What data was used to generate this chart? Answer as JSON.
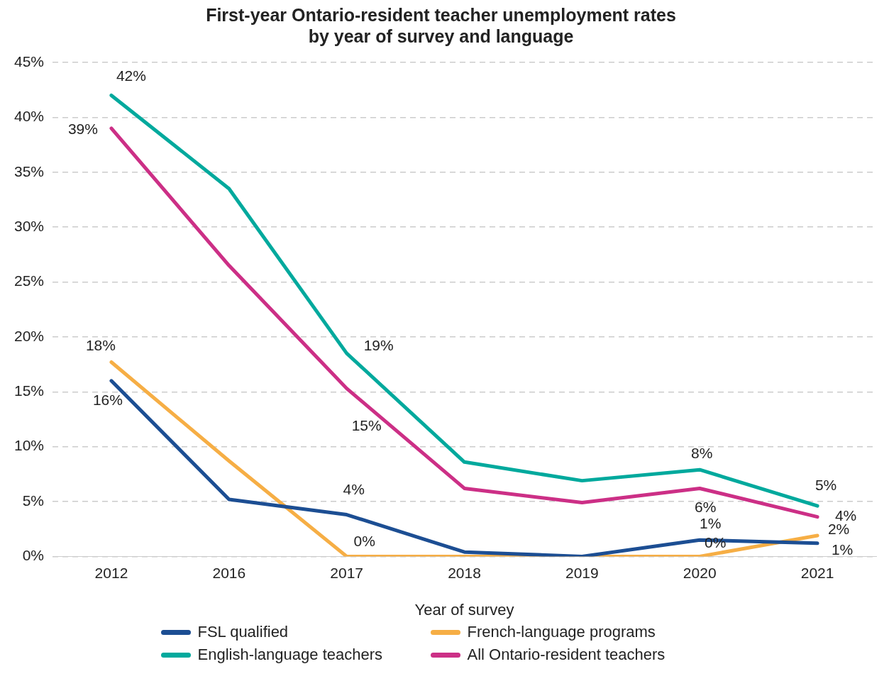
{
  "chart_data": {
    "type": "line",
    "title": "First-year Ontario-resident teacher unemployment rates\nby year of survey and language",
    "xlabel": "Year of survey",
    "categories": [
      "2012",
      "2016",
      "2017",
      "2018",
      "2019",
      "2020",
      "2021"
    ],
    "series": [
      {
        "name": "FSL qualified",
        "color": "#1c4e93",
        "values": [
          16,
          5.2,
          3.8,
          0.4,
          0,
          1.5,
          1.2
        ],
        "value_labels": [
          "16%",
          null,
          "4%",
          null,
          null,
          "1%",
          "1%"
        ]
      },
      {
        "name": "French-language programs",
        "color": "#f6ae45",
        "values": [
          17.7,
          8.7,
          0,
          0,
          0,
          0,
          1.9
        ],
        "value_labels": [
          "18%",
          null,
          "0%",
          null,
          null,
          "0%",
          "2%"
        ]
      },
      {
        "name": "English-language teachers",
        "color": "#00a99d",
        "values": [
          42,
          33.5,
          18.5,
          8.6,
          6.9,
          7.9,
          4.6
        ],
        "value_labels": [
          "42%",
          null,
          "19%",
          null,
          null,
          "8%",
          "5%"
        ]
      },
      {
        "name": "All Ontario-resident teachers",
        "color": "#cc2f86",
        "values": [
          39,
          26.5,
          15.3,
          6.2,
          4.9,
          6.2,
          3.6
        ],
        "value_labels": [
          "39%",
          null,
          "15%",
          null,
          null,
          "6%",
          "4%"
        ]
      }
    ],
    "ylim": [
      0,
      45
    ],
    "yticks": [
      {
        "value": 0,
        "label": "0%"
      },
      {
        "value": 5,
        "label": "5%"
      },
      {
        "value": 10,
        "label": "10%"
      },
      {
        "value": 15,
        "label": "15%"
      },
      {
        "value": 20,
        "label": "20%"
      },
      {
        "value": 25,
        "label": "25%"
      },
      {
        "value": 30,
        "label": "30%"
      },
      {
        "value": 35,
        "label": "35%"
      },
      {
        "value": 40,
        "label": "40%"
      },
      {
        "value": 45,
        "label": "45%"
      }
    ],
    "grid": "y",
    "legend": "bottom",
    "marker": "none",
    "line_style": "solid"
  }
}
